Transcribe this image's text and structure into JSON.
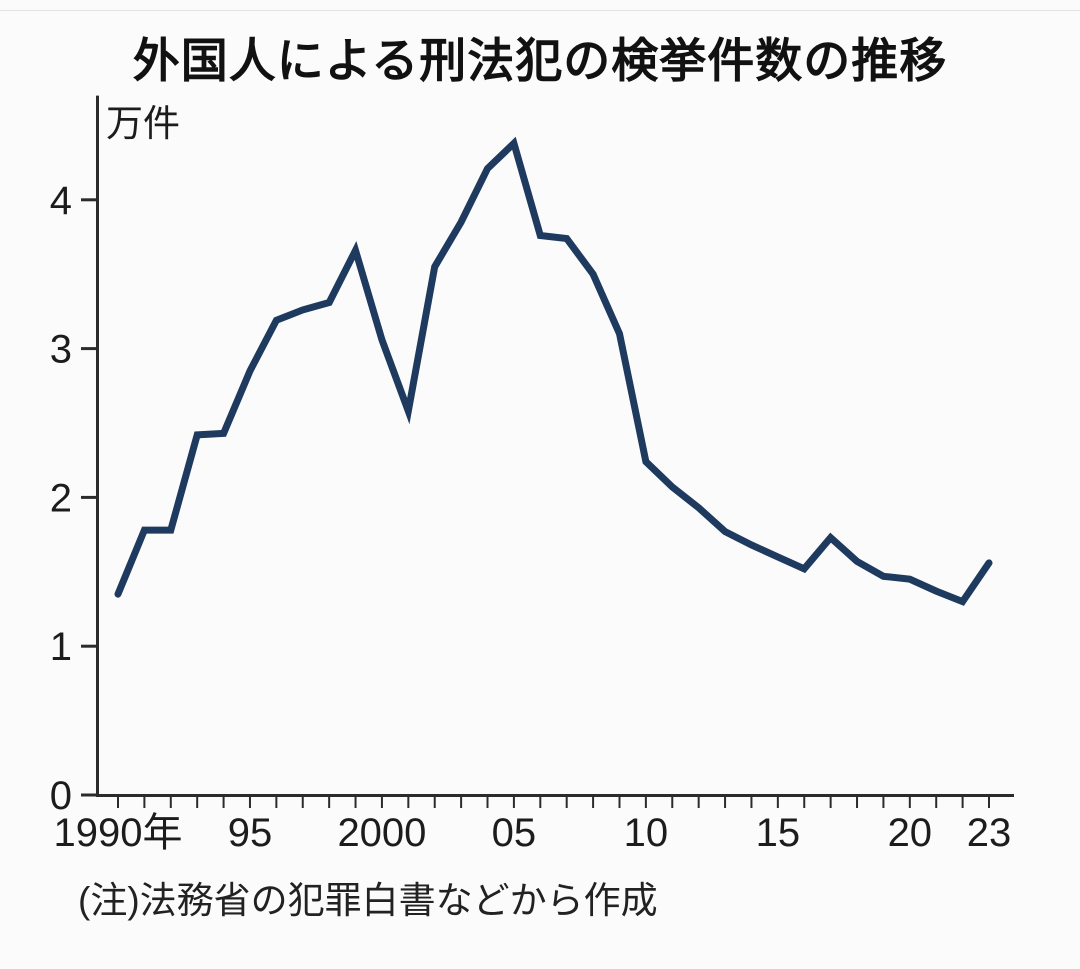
{
  "title": "外国人による刑法犯の検挙件数の推移",
  "note": "(注)法務省の犯罪白書などから作成",
  "colors": {
    "line": "#1e3a5f",
    "axis": "#2b2b2b",
    "text": "#1c1c1c",
    "background": "#fbfbfb"
  },
  "chart_data": {
    "type": "line",
    "title": "外国人による刑法犯の検挙件数の推移",
    "unit_label": "万件",
    "xlabel": "",
    "ylabel": "万件",
    "x": [
      1990,
      1991,
      1992,
      1993,
      1994,
      1995,
      1996,
      1997,
      1998,
      1999,
      2000,
      2001,
      2002,
      2003,
      2004,
      2005,
      2006,
      2007,
      2008,
      2009,
      2010,
      2011,
      2012,
      2013,
      2014,
      2015,
      2016,
      2017,
      2018,
      2019,
      2020,
      2021,
      2022,
      2023
    ],
    "values": [
      1.35,
      1.78,
      1.78,
      2.42,
      2.43,
      2.85,
      3.19,
      3.26,
      3.31,
      3.66,
      3.06,
      2.58,
      3.55,
      3.85,
      4.21,
      4.38,
      3.76,
      3.74,
      3.5,
      3.1,
      2.24,
      2.07,
      1.93,
      1.77,
      1.68,
      1.6,
      1.52,
      1.73,
      1.57,
      1.47,
      1.45,
      1.37,
      1.3,
      1.56
    ],
    "ylim": [
      0,
      4.7
    ],
    "yticks": [
      0,
      1,
      2,
      3,
      4
    ],
    "xtick_labels": [
      {
        "year": 1990,
        "label": "1990年"
      },
      {
        "year": 1995,
        "label": "95"
      },
      {
        "year": 2000,
        "label": "2000"
      },
      {
        "year": 2005,
        "label": "05"
      },
      {
        "year": 2010,
        "label": "10"
      },
      {
        "year": 2015,
        "label": "15"
      },
      {
        "year": 2020,
        "label": "20"
      },
      {
        "year": 2023,
        "label": "23"
      }
    ],
    "x_minor_tick_every_year": true,
    "grid": false,
    "legend": "none",
    "source_note": "(注)法務省の犯罪白書などから作成"
  }
}
